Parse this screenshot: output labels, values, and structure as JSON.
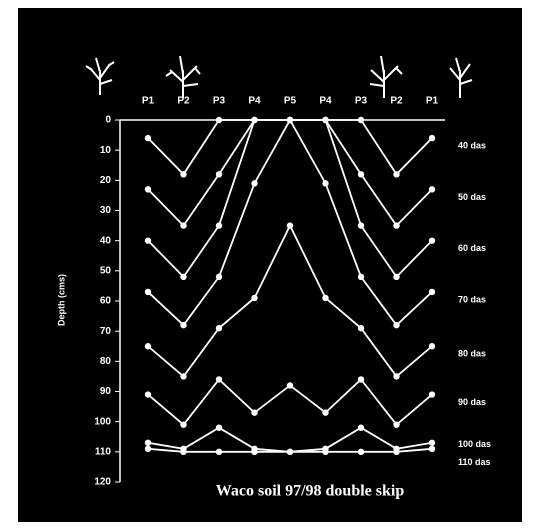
{
  "chart_data": {
    "type": "line",
    "title": "Waco soil 97/98 double skip",
    "y_label": "Depth (cms)",
    "categories": [
      "P1",
      "P2",
      "P3",
      "P4",
      "P5",
      "P4",
      "P3",
      "P2",
      "P1"
    ],
    "ylim": [
      0,
      120
    ],
    "yticks": [
      0,
      10,
      20,
      30,
      40,
      50,
      60,
      70,
      80,
      90,
      100,
      110,
      120
    ],
    "inverted_y": true,
    "color": "#ffffff",
    "series": [
      {
        "name": "40 das",
        "color": "#ffffff",
        "values": [
          6,
          18,
          0,
          0,
          0,
          0,
          0,
          18,
          6
        ]
      },
      {
        "name": "50 das",
        "color": "#ffffff",
        "values": [
          23,
          35,
          18,
          0,
          0,
          0,
          18,
          35,
          23
        ]
      },
      {
        "name": "60 das",
        "color": "#ffffff",
        "values": [
          40,
          52,
          35,
          0,
          0,
          0,
          35,
          52,
          40
        ]
      },
      {
        "name": "70 das",
        "color": "#ffffff",
        "values": [
          57,
          68,
          52,
          21,
          0,
          21,
          52,
          68,
          57
        ]
      },
      {
        "name": "80 das",
        "color": "#ffffff",
        "values": [
          75,
          85,
          69,
          59,
          35,
          59,
          69,
          85,
          75
        ]
      },
      {
        "name": "90 das",
        "color": "#ffffff",
        "values": [
          91,
          101,
          86,
          97,
          88,
          97,
          86,
          101,
          91
        ]
      },
      {
        "name": "100 das",
        "color": "#ffffff",
        "values": [
          107,
          109,
          102,
          109,
          110,
          109,
          102,
          109,
          107
        ]
      },
      {
        "name": "110 das",
        "color": "#ffffff",
        "values": [
          109,
          110,
          110,
          110,
          110,
          110,
          110,
          110,
          109
        ]
      }
    ]
  }
}
